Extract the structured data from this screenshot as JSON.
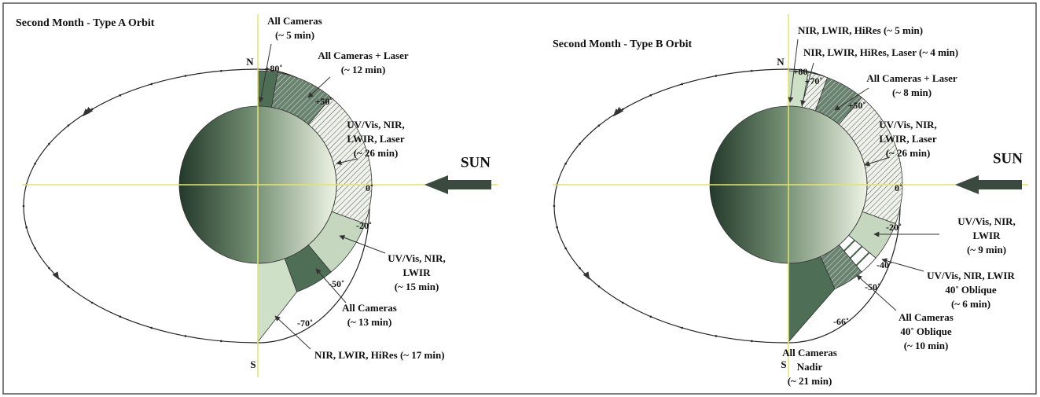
{
  "panels": [
    {
      "title": "Second Month - Type A Orbit",
      "north": "N",
      "south": "S",
      "sun": "SUN",
      "angles": [
        "+80˚",
        "+50˚",
        "0˚",
        "-20˚",
        "-50˚",
        "-70˚"
      ],
      "regions": [
        [
          "All Cameras",
          "(~ 5 min)"
        ],
        [
          "All Cameras + Laser",
          "(~ 12 min)"
        ],
        [
          "UV/Vis, NIR,",
          "LWIR, Laser",
          "(~ 26 min)"
        ],
        [
          "UV/Vis, NIR,",
          "LWIR",
          "(~ 15 min)"
        ],
        [
          "All Cameras",
          "(~ 13 min)"
        ],
        [
          "NIR, LWIR, HiRes (~ 17 min)"
        ]
      ]
    },
    {
      "title": "Second Month - Type B Orbit",
      "north": "N",
      "south": "S",
      "sun": "SUN",
      "angles": [
        "+80",
        "+70˚",
        "+50˚",
        "0˚",
        "-20˚",
        "-40˚",
        "-50˚",
        "-66˚"
      ],
      "regions": [
        [
          "NIR, LWIR, HiRes (~ 5 min)"
        ],
        [
          "NIR, LWIR, HiRes, Laser (~ 4 min)"
        ],
        [
          "All Cameras + Laser",
          "(~ 8 min)"
        ],
        [
          "UV/Vis, NIR,",
          "LWIR, Laser",
          "(~ 26 min)"
        ],
        [
          "UV/Vis, NIR,",
          "LWIR",
          "(~ 9 min)"
        ],
        [
          "UV/Vis, NIR, LWIR",
          "40˚ Oblique",
          "(~ 6 min)"
        ],
        [
          "All Cameras",
          "40˚ Oblique",
          "(~ 10 min)"
        ],
        [
          "All Cameras",
          "Nadir",
          "(~ 21 min)"
        ]
      ]
    }
  ]
}
